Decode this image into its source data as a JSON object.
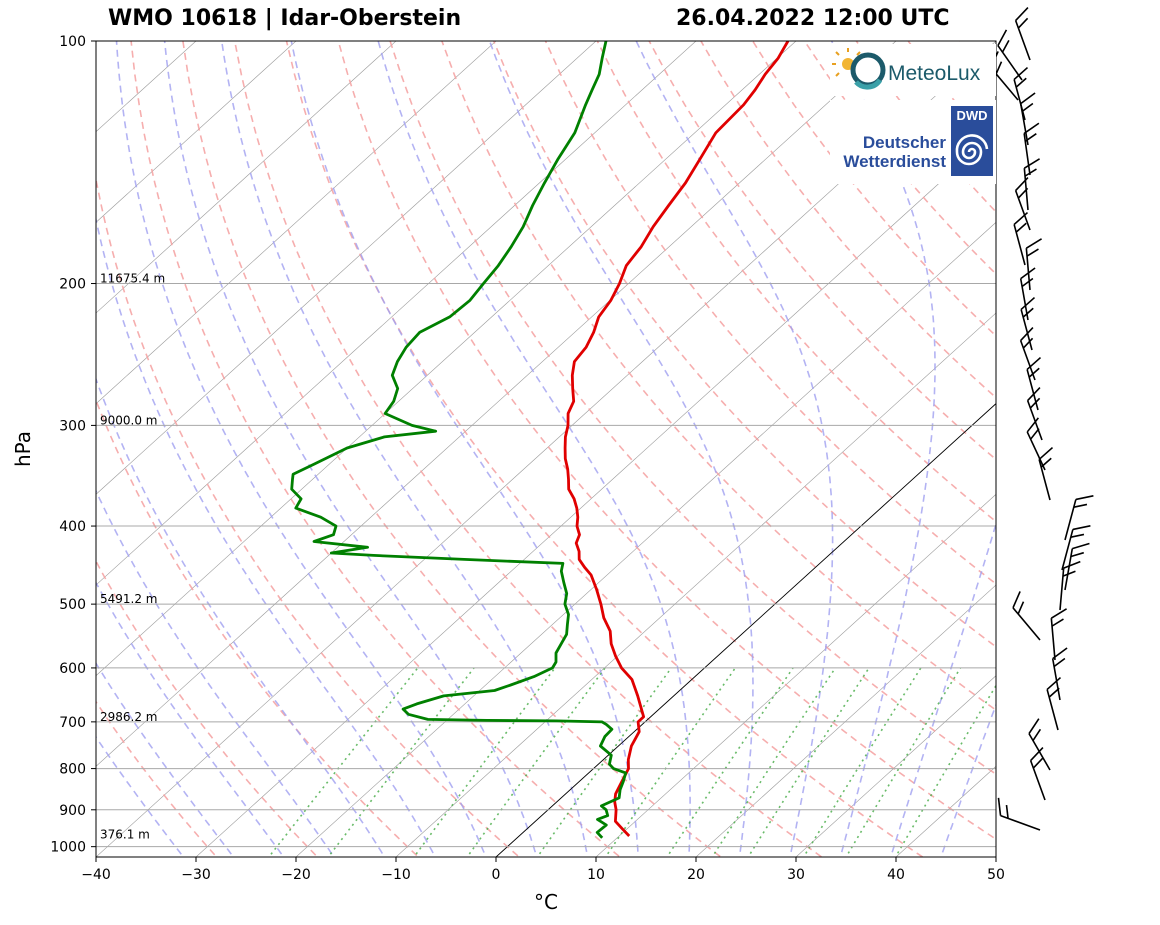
{
  "title": {
    "station": "WMO 10618 | Idar-Oberstein",
    "datetime": "26.04.2022 12:00 UTC"
  },
  "logos": {
    "meteolux": {
      "text": "MeteoLux"
    },
    "dwd": {
      "badge": "DWD",
      "line1": "Deutscher",
      "line2": "Wetterdienst"
    }
  },
  "colors": {
    "temperature": "#e00000",
    "dewpoint": "#008000",
    "dry_adiabat": "#f4a0a0",
    "moist_adiabat": "#a0a0f0",
    "mixing_ratio": "#44aa44",
    "isotherm": "#808080",
    "dwd_blue": "#2a4d9b",
    "meteolux_teal": "#1c5a6a"
  },
  "chart_data": {
    "type": "skew-t log-p",
    "xlabel": "°C",
    "ylabel": "hPa",
    "xlim": [
      -40,
      50
    ],
    "ylim": [
      1030,
      100
    ],
    "x_ticks": [
      -40,
      -30,
      -20,
      -10,
      0,
      10,
      20,
      30,
      40,
      50
    ],
    "x_tick_labels": [
      "−40",
      "−30",
      "−20",
      "−10",
      "0",
      "10",
      "20",
      "30",
      "40",
      "50"
    ],
    "y_ticks": [
      100,
      200,
      300,
      400,
      500,
      600,
      700,
      800,
      900,
      1000
    ],
    "y_tick_labels": [
      "100",
      "200",
      "300",
      "400",
      "500",
      "600",
      "700",
      "800",
      "900",
      "1000"
    ],
    "height_annotations": [
      {
        "pressure": 200,
        "label": "11675.4 m"
      },
      {
        "pressure": 300,
        "label": "9000.0 m"
      },
      {
        "pressure": 500,
        "label": "5491.2 m"
      },
      {
        "pressure": 700,
        "label": "2986.2 m"
      },
      {
        "pressure": 980,
        "label": "376.1 m"
      }
    ],
    "series": [
      {
        "name": "temperature",
        "points": [
          [
            970,
            11.0
          ],
          [
            950,
            9.5
          ],
          [
            930,
            8.0
          ],
          [
            900,
            6.8
          ],
          [
            880,
            5.8
          ],
          [
            860,
            5.0
          ],
          [
            840,
            4.5
          ],
          [
            800,
            3.5
          ],
          [
            780,
            2.5
          ],
          [
            750,
            1.3
          ],
          [
            720,
            0.5
          ],
          [
            700,
            -0.7
          ],
          [
            690,
            -0.7
          ],
          [
            680,
            -1.4
          ],
          [
            650,
            -3.6
          ],
          [
            620,
            -6.0
          ],
          [
            600,
            -8.3
          ],
          [
            580,
            -10.2
          ],
          [
            560,
            -12.0
          ],
          [
            540,
            -13.5
          ],
          [
            520,
            -15.6
          ],
          [
            500,
            -17.4
          ],
          [
            480,
            -19.4
          ],
          [
            460,
            -21.6
          ],
          [
            450,
            -23.1
          ],
          [
            440,
            -24.5
          ],
          [
            430,
            -25.4
          ],
          [
            420,
            -26.6
          ],
          [
            410,
            -27.2
          ],
          [
            400,
            -28.4
          ],
          [
            390,
            -29.3
          ],
          [
            380,
            -30.4
          ],
          [
            370,
            -31.7
          ],
          [
            360,
            -33.3
          ],
          [
            350,
            -34.4
          ],
          [
            340,
            -35.6
          ],
          [
            330,
            -37.0
          ],
          [
            320,
            -38.2
          ],
          [
            310,
            -39.4
          ],
          [
            300,
            -40.4
          ],
          [
            290,
            -41.7
          ],
          [
            280,
            -42.5
          ],
          [
            270,
            -44.0
          ],
          [
            260,
            -45.5
          ],
          [
            250,
            -46.8
          ],
          [
            240,
            -47.2
          ],
          [
            230,
            -48.1
          ],
          [
            220,
            -49.3
          ],
          [
            210,
            -49.9
          ],
          [
            200,
            -50.9
          ],
          [
            190,
            -52.2
          ],
          [
            180,
            -52.8
          ],
          [
            170,
            -53.8
          ],
          [
            160,
            -54.6
          ],
          [
            150,
            -55.4
          ],
          [
            140,
            -56.6
          ],
          [
            130,
            -57.9
          ],
          [
            120,
            -58.2
          ],
          [
            115,
            -58.7
          ],
          [
            110,
            -59.4
          ],
          [
            105,
            -59.9
          ],
          [
            100,
            -60.8
          ]
        ]
      },
      {
        "name": "dewpoint",
        "points": [
          [
            975,
            8.5
          ],
          [
            960,
            7.4
          ],
          [
            940,
            7.5
          ],
          [
            925,
            6.0
          ],
          [
            915,
            6.6
          ],
          [
            900,
            5.8
          ],
          [
            890,
            4.9
          ],
          [
            870,
            5.8
          ],
          [
            850,
            5.0
          ],
          [
            830,
            4.4
          ],
          [
            810,
            3.7
          ],
          [
            800,
            2.0
          ],
          [
            790,
            1.1
          ],
          [
            770,
            0.3
          ],
          [
            750,
            -1.8
          ],
          [
            730,
            -2.4
          ],
          [
            715,
            -2.5
          ],
          [
            705,
            -3.6
          ],
          [
            700,
            -4.3
          ],
          [
            698,
            -9.0
          ],
          [
            697,
            -16.0
          ],
          [
            695,
            -22.0
          ],
          [
            685,
            -24.5
          ],
          [
            675,
            -25.6
          ],
          [
            665,
            -24.8
          ],
          [
            650,
            -23.0
          ],
          [
            640,
            -18.5
          ],
          [
            630,
            -17.5
          ],
          [
            615,
            -16.1
          ],
          [
            600,
            -15.2
          ],
          [
            590,
            -15.5
          ],
          [
            575,
            -16.5
          ],
          [
            560,
            -17.0
          ],
          [
            545,
            -17.5
          ],
          [
            530,
            -18.5
          ],
          [
            515,
            -19.5
          ],
          [
            500,
            -21.0
          ],
          [
            485,
            -22.0
          ],
          [
            470,
            -23.5
          ],
          [
            455,
            -25.0
          ],
          [
            445,
            -25.7
          ],
          [
            440,
            -36.0
          ],
          [
            435,
            -45.5
          ],
          [
            432,
            -50.0
          ],
          [
            425,
            -47.0
          ],
          [
            418,
            -53.0
          ],
          [
            410,
            -51.8
          ],
          [
            400,
            -52.5
          ],
          [
            390,
            -55.0
          ],
          [
            380,
            -58.5
          ],
          [
            370,
            -59.0
          ],
          [
            360,
            -61.0
          ],
          [
            350,
            -62.0
          ],
          [
            345,
            -62.5
          ],
          [
            335,
            -61.5
          ],
          [
            320,
            -60.0
          ],
          [
            310,
            -57.5
          ],
          [
            305,
            -53.0
          ],
          [
            300,
            -56.0
          ],
          [
            290,
            -60.0
          ],
          [
            280,
            -60.5
          ],
          [
            270,
            -61.5
          ],
          [
            260,
            -63.5
          ],
          [
            250,
            -64.5
          ],
          [
            240,
            -65.2
          ],
          [
            230,
            -65.5
          ],
          [
            220,
            -64.2
          ],
          [
            210,
            -64.0
          ],
          [
            200,
            -64.5
          ],
          [
            190,
            -65.0
          ],
          [
            180,
            -65.8
          ],
          [
            170,
            -66.8
          ],
          [
            160,
            -68.2
          ],
          [
            150,
            -69.5
          ],
          [
            140,
            -70.8
          ],
          [
            130,
            -72.0
          ],
          [
            120,
            -74.0
          ],
          [
            115,
            -75.0
          ],
          [
            110,
            -76.0
          ],
          [
            105,
            -77.5
          ],
          [
            100,
            -79.0
          ]
        ]
      }
    ],
    "wind_barbs_present": true
  }
}
